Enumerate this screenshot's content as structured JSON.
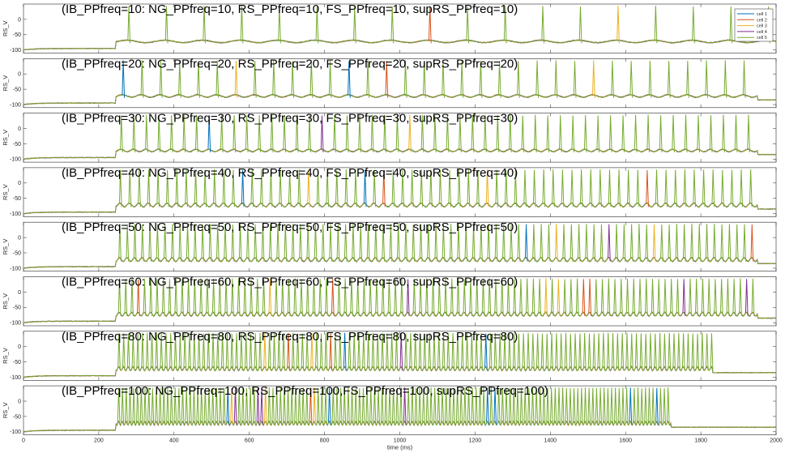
{
  "chart_data": {
    "type": "line",
    "xlabel": "time (ms)",
    "xlim": [
      0,
      2000
    ],
    "x_ticks": [
      "0",
      "200",
      "400",
      "600",
      "800",
      "1000",
      "1200",
      "1400",
      "1600",
      "1800",
      "2000"
    ],
    "ylim": [
      -110,
      50
    ],
    "legend": {
      "position": "top-right",
      "entries": [
        "cell 1",
        "cell 2",
        "cell 3",
        "cell 4",
        "cell 5"
      ]
    },
    "series_colors": [
      "#0072BD",
      "#D95319",
      "#EDB120",
      "#7E2F8E",
      "#77AC30"
    ],
    "panels": [
      {
        "title": "(IB_PPfreq=10: NG_PPfreq=10, RS_PPfreq=10, FS_PPfreq=10, supRS_PPfreq=10)",
        "ylabel": "RS_V",
        "y_ticks": [
          "0",
          "-50",
          "-100"
        ],
        "pp_freq": 10
      },
      {
        "title": "(IB_PPfreq=20: NG_PPfreq=20, RS_PPfreq=20, FS_PPfreq=20, supRS_PPfreq=20)",
        "ylabel": "RS_V",
        "y_ticks": [
          "0",
          "-50",
          "-100"
        ],
        "pp_freq": 20
      },
      {
        "title": "(IB_PPfreq=30: NG_PPfreq=30, RS_PPfreq=30, FS_PPfreq=30, supRS_PPfreq=30)",
        "ylabel": "RS_V",
        "y_ticks": [
          "0",
          "-50",
          "-100"
        ],
        "pp_freq": 30
      },
      {
        "title": "(IB_PPfreq=40: NG_PPfreq=40, RS_PPfreq=40, FS_PPfreq=40, supRS_PPfreq=40)",
        "ylabel": "RS_V",
        "y_ticks": [
          "0",
          "-50",
          "-100"
        ],
        "pp_freq": 40
      },
      {
        "title": "(IB_PPfreq=50: NG_PPfreq=50, RS_PPfreq=50, FS_PPfreq=50, supRS_PPfreq=50)",
        "ylabel": "RS_V",
        "y_ticks": [
          "0",
          "-50",
          "-100"
        ],
        "pp_freq": 50
      },
      {
        "title": "(IB_PPfreq=60: NG_PPfreq=60, RS_PPfreq=60, FS_PPfreq=60, supRS_PPfreq=60)",
        "ylabel": "RS_V",
        "y_ticks": [
          "0",
          "-50",
          "-100"
        ],
        "pp_freq": 60
      },
      {
        "title": "(IB_PPfreq=80: NG_PPfreq=80, RS_PPfreq=80, FS_PPfreq=80, supRS_PPfreq=80)",
        "ylabel": "RS_V",
        "y_ticks": [
          "0",
          "-50",
          "-100"
        ],
        "pp_freq": 80
      },
      {
        "title": "(IB_PPfreq=100: NG_PPfreq=100, RS_PPfreq=100,FS_PPfreq=100, supRS_PPfreq=100)",
        "ylabel": "RS_V",
        "y_ticks": [
          "0",
          "-50",
          "-100"
        ],
        "pp_freq": 100
      }
    ]
  }
}
